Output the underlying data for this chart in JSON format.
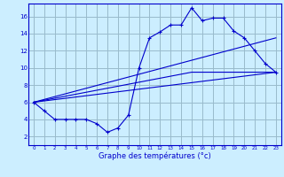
{
  "xlabel": "Graphe des températures (°c)",
  "bg_color": "#cceeff",
  "line_color": "#0000cc",
  "grid_color": "#99bbcc",
  "xlim": [
    -0.5,
    23.5
  ],
  "ylim": [
    1.0,
    17.5
  ],
  "xticks": [
    0,
    1,
    2,
    3,
    4,
    5,
    6,
    7,
    8,
    9,
    10,
    11,
    12,
    13,
    14,
    15,
    16,
    17,
    18,
    19,
    20,
    21,
    22,
    23
  ],
  "yticks": [
    2,
    4,
    6,
    8,
    10,
    12,
    14,
    16
  ],
  "line1_x": [
    0,
    1,
    2,
    3,
    4,
    5,
    6,
    7,
    8,
    9,
    10,
    11,
    12,
    13,
    14,
    15,
    16,
    17,
    18,
    19,
    20,
    21,
    22,
    23
  ],
  "line1_y": [
    6.0,
    5.0,
    4.0,
    4.0,
    4.0,
    4.0,
    3.5,
    2.5,
    3.0,
    4.5,
    10.0,
    13.5,
    14.2,
    15.0,
    15.0,
    17.0,
    15.5,
    15.8,
    15.8,
    14.3,
    13.5,
    12.0,
    10.5,
    9.5
  ],
  "line2_x": [
    0,
    23
  ],
  "line2_y": [
    6.0,
    9.5
  ],
  "line3_x": [
    0,
    23
  ],
  "line3_y": [
    6.0,
    13.5
  ],
  "line4_x": [
    0,
    15,
    23
  ],
  "line4_y": [
    6.0,
    9.5,
    9.5
  ]
}
